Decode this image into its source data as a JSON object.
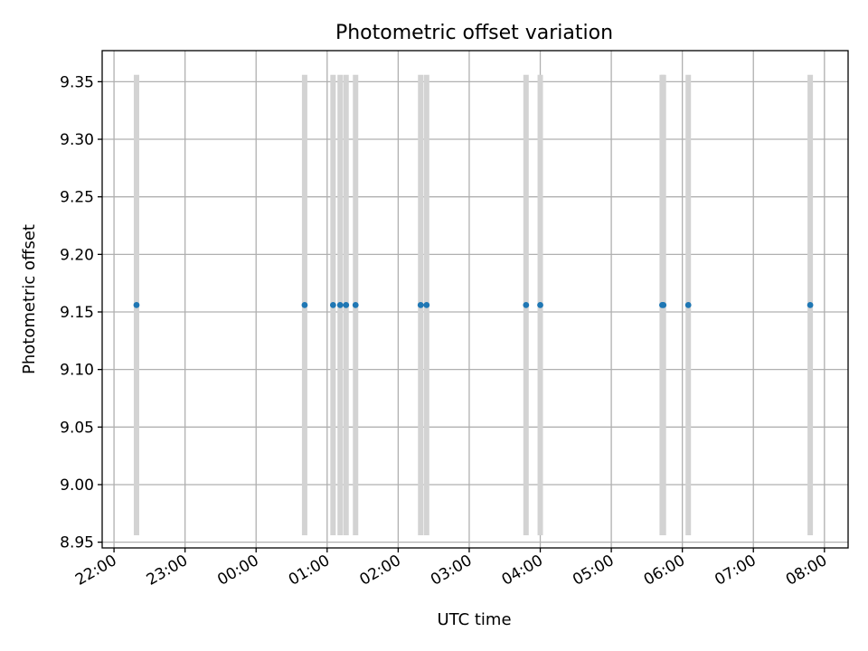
{
  "chart_data": {
    "type": "scatter",
    "title": "Photometric offset variation",
    "xlabel": "UTC time",
    "ylabel": "Photometric offset",
    "x_tick_labels": [
      "22:00",
      "23:00",
      "00:00",
      "01:00",
      "02:00",
      "03:00",
      "04:00",
      "05:00",
      "06:00",
      "07:00",
      "08:00"
    ],
    "y_tick_labels": [
      "8.95",
      "9.00",
      "9.05",
      "9.10",
      "9.15",
      "9.20",
      "9.25",
      "9.30",
      "9.35"
    ],
    "y_ticks": [
      8.95,
      9.0,
      9.05,
      9.1,
      9.15,
      9.2,
      9.25,
      9.3,
      9.35
    ],
    "ylim": [
      8.945,
      9.377
    ],
    "xlim": [
      "21:50",
      "08:20"
    ],
    "x_axis_start_time": "22:00",
    "grid": true,
    "colors": {
      "points": "#1f77b4",
      "error_bars": "#d3d3d3",
      "grid": "#b0b0b0"
    },
    "series": [
      {
        "x": [
          "22:19",
          "00:41",
          "01:05",
          "01:11",
          "01:16",
          "01:24",
          "02:19",
          "02:24",
          "03:48",
          "04:00",
          "05:43",
          "05:44",
          "06:05",
          "07:48"
        ],
        "y": [
          9.156,
          9.156,
          9.156,
          9.156,
          9.156,
          9.156,
          9.156,
          9.156,
          9.156,
          9.156,
          9.156,
          9.156,
          9.156,
          9.156
        ],
        "err_low": [
          8.956,
          8.956,
          8.956,
          8.956,
          8.956,
          8.956,
          8.956,
          8.956,
          8.956,
          8.956,
          8.956,
          8.956,
          8.956,
          8.956
        ],
        "err_high": [
          9.356,
          9.356,
          9.356,
          9.356,
          9.356,
          9.356,
          9.356,
          9.356,
          9.356,
          9.356,
          9.356,
          9.356,
          9.356,
          9.356
        ]
      }
    ]
  }
}
